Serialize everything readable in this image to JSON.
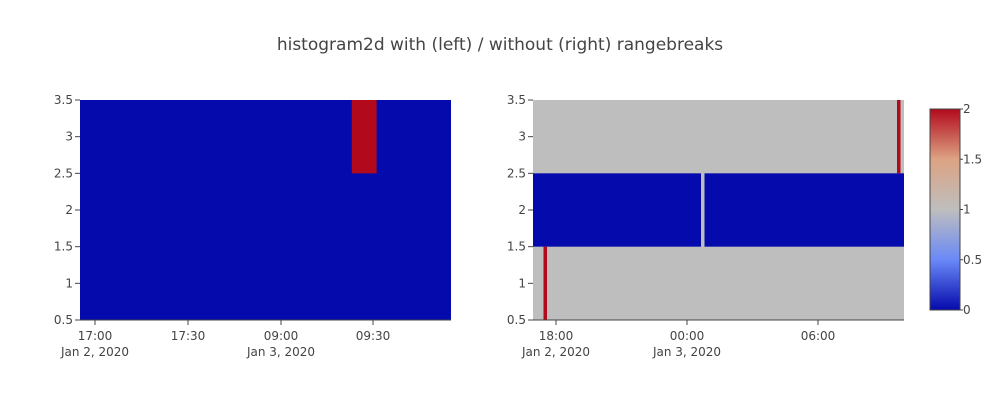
{
  "title": "histogram2d with (left) / without (right) rangebreaks",
  "colors": {
    "background": "#ffffff",
    "axis_line": "#444444",
    "text": "#444444"
  },
  "colorscale": [
    {
      "value": 0,
      "color": "#050aac"
    },
    {
      "value": 0.25,
      "color": "#6a89f7"
    },
    {
      "value": 0.5,
      "color": "#bebebe"
    },
    {
      "value": 0.75,
      "color": "#dca383"
    },
    {
      "value": 1,
      "color": "#b20a1c"
    }
  ],
  "chart_data": [
    {
      "type": "heatmap",
      "name": "left",
      "x_ticks": [
        {
          "label": "17:00",
          "sub": "Jan 2, 2020"
        },
        {
          "label": "17:30",
          "sub": ""
        },
        {
          "label": "09:00",
          "sub": "Jan 3, 2020"
        },
        {
          "label": "09:30",
          "sub": ""
        }
      ],
      "y_ticks": [
        "0.5",
        "1",
        "1.5",
        "2",
        "2.5",
        "3",
        "3.5"
      ],
      "ylim": [
        0.5,
        3.5
      ],
      "rangebreaks": true,
      "cells": [
        {
          "x0": "2020-01-02 16:45",
          "x1": "2020-01-02 18:00",
          "y0": 0.5,
          "y1": 3.5,
          "z": 0
        },
        {
          "x0": "2020-01-03 08:45",
          "x1": "2020-01-03 10:00",
          "y0": 1.5,
          "y1": 2.5,
          "z": 0
        },
        {
          "x0": "2020-01-03 09:20",
          "x1": "2020-01-03 09:30",
          "y0": 2.5,
          "y1": 3.5,
          "z": 2
        }
      ]
    },
    {
      "type": "heatmap",
      "name": "right",
      "x_ticks": [
        {
          "label": "18:00",
          "sub": "Jan 2, 2020"
        },
        {
          "label": "00:00",
          "sub": "Jan 3, 2020"
        },
        {
          "label": "06:00",
          "sub": ""
        }
      ],
      "y_ticks": [
        "0.5",
        "1",
        "1.5",
        "2",
        "2.5",
        "3",
        "3.5"
      ],
      "ylim": [
        0.5,
        3.5
      ],
      "rangebreaks": false,
      "cells": [
        {
          "x0": "2020-01-02 16:00",
          "x1": "2020-01-03 00:00",
          "y0": 1.5,
          "y1": 2.5,
          "z": 0
        },
        {
          "x0": "2020-01-03 00:10",
          "x1": "2020-01-03 10:00",
          "y0": 1.5,
          "y1": 2.5,
          "z": 0
        },
        {
          "x0": "2020-01-02 16:30",
          "x1": "2020-01-02 16:40",
          "y0": 0.5,
          "y1": 1.5,
          "z": 2
        },
        {
          "x0": "2020-01-03 09:20",
          "x1": "2020-01-03 09:30",
          "y0": 2.5,
          "y1": 3.5,
          "z": 2
        }
      ]
    }
  ],
  "colorbar": {
    "ticks": [
      "0",
      "0.5",
      "1",
      "1.5",
      "2"
    ],
    "range": [
      0,
      2
    ]
  }
}
